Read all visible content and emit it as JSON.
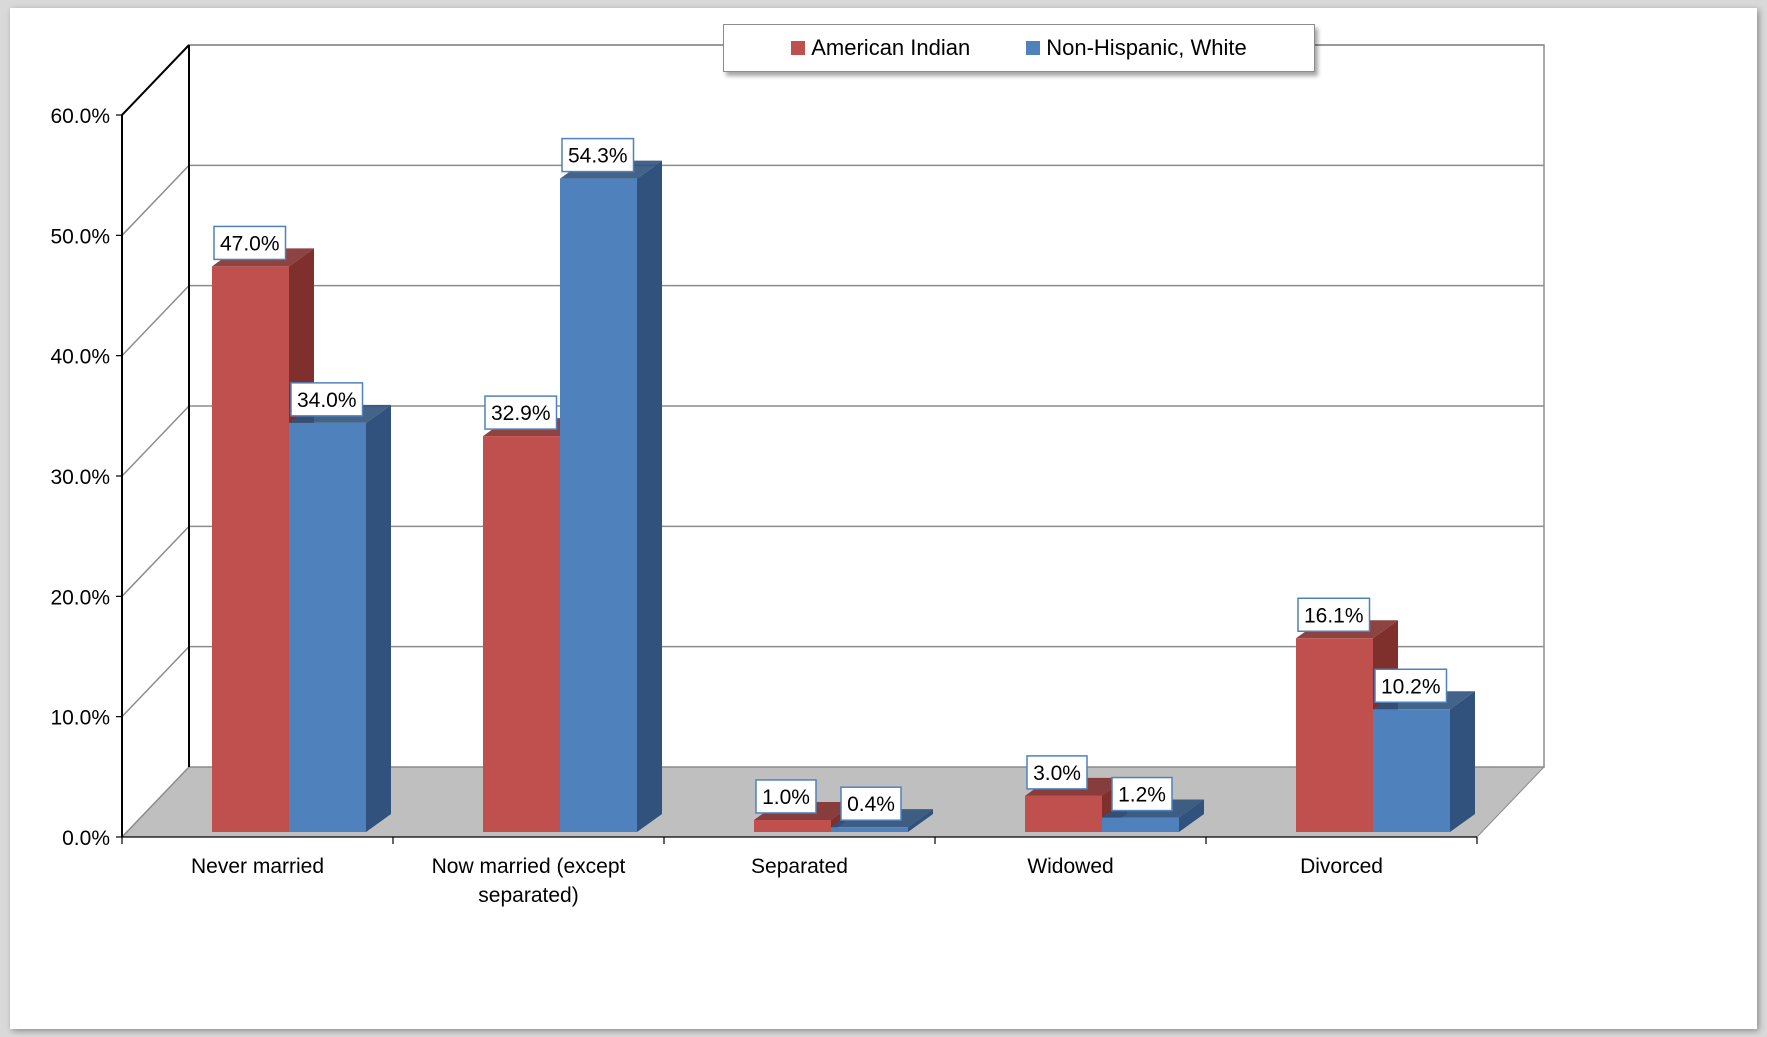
{
  "chart_data": {
    "type": "bar",
    "title": "",
    "xlabel": "",
    "ylabel": "",
    "categories": [
      [
        "Never married"
      ],
      [
        "Now married (except",
        "separated)"
      ],
      [
        "Separated"
      ],
      [
        "Widowed"
      ],
      [
        "Divorced"
      ]
    ],
    "series": [
      {
        "name": "American Indian",
        "color": "#c0504d",
        "side_color": "#7f2f2c",
        "values": [
          47.0,
          32.9,
          1.0,
          3.0,
          16.1
        ],
        "labels": [
          "47.0%",
          "32.9%",
          "1.0%",
          "3.0%",
          "16.1%"
        ]
      },
      {
        "name": "Non-Hispanic, White",
        "color": "#4f81bd",
        "side_color": "#30527c",
        "values": [
          34.0,
          54.3,
          0.4,
          1.2,
          10.2
        ],
        "labels": [
          "34.0%",
          "54.3%",
          "0.4%",
          "1.2%",
          "10.2%"
        ]
      }
    ],
    "ylim": [
      0,
      60
    ],
    "yticks": [
      "0.0%",
      "10.0%",
      "20.0%",
      "30.0%",
      "40.0%",
      "50.0%",
      "60.0%"
    ],
    "grid": true,
    "style": "3d-clustered-column",
    "legend_position": "top"
  }
}
